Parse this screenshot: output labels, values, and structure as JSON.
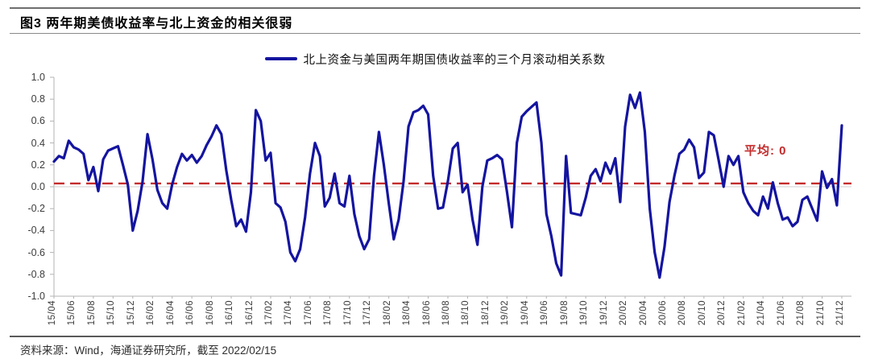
{
  "header": {
    "title": "图3  两年期美债收益率与北上资金的相关很弱"
  },
  "legend": {
    "label": "北上资金与美国两年期国债收益率的三个月滚动相关系数"
  },
  "annotation": {
    "label": "平均: 0"
  },
  "footer": {
    "source": "资料来源：Wind，海通证券研究所，截至 2022/02/15"
  },
  "chart_data": {
    "type": "line",
    "title": "北上资金与美国两年期国债收益率的三个月滚动相关系数",
    "xlabel": "",
    "ylabel": "",
    "ylim": [
      -1.0,
      1.0
    ],
    "yticks": [
      1.0,
      0.8,
      0.6,
      0.4,
      0.2,
      0.0,
      -0.2,
      -0.4,
      -0.6,
      -0.8,
      -1.0
    ],
    "grid": "zero-line-only",
    "legend_position": "top-center",
    "x_tick_labels": [
      "15/04",
      "15/06",
      "15/08",
      "15/10",
      "15/12",
      "16/02",
      "16/04",
      "16/06",
      "16/08",
      "16/10",
      "16/12",
      "17/02",
      "17/04",
      "17/06",
      "17/08",
      "17/10",
      "17/12",
      "18/02",
      "18/04",
      "18/06",
      "18/08",
      "18/10",
      "18/12",
      "19/02",
      "19/04",
      "19/06",
      "19/08",
      "19/10",
      "19/12",
      "20/02",
      "20/04",
      "20/06",
      "20/08",
      "20/10",
      "20/12",
      "21/02",
      "21/04",
      "21/06",
      "21/08",
      "21/10",
      "21/12"
    ],
    "x_start_label": "15/04",
    "x_months_per_point": 0.5,
    "mean_line": {
      "value": 0.03,
      "label": "平均: 0"
    },
    "series": [
      {
        "name": "北上资金与美国两年期国债收益率的三个月滚动相关系数",
        "values": [
          0.23,
          0.28,
          0.26,
          0.42,
          0.36,
          0.34,
          0.3,
          0.06,
          0.18,
          -0.04,
          0.25,
          0.33,
          0.35,
          0.37,
          0.2,
          0.02,
          -0.4,
          -0.22,
          0.05,
          0.48,
          0.25,
          -0.03,
          -0.15,
          -0.2,
          0.02,
          0.18,
          0.3,
          0.24,
          0.29,
          0.22,
          0.28,
          0.38,
          0.46,
          0.56,
          0.48,
          0.15,
          -0.12,
          -0.36,
          -0.3,
          -0.41,
          -0.05,
          0.7,
          0.6,
          0.24,
          0.31,
          -0.15,
          -0.19,
          -0.32,
          -0.6,
          -0.68,
          -0.57,
          -0.28,
          0.12,
          0.4,
          0.28,
          -0.18,
          -0.1,
          0.12,
          -0.15,
          -0.18,
          0.1,
          -0.25,
          -0.45,
          -0.57,
          -0.48,
          0.1,
          0.5,
          0.2,
          -0.15,
          -0.48,
          -0.3,
          0.05,
          0.55,
          0.68,
          0.7,
          0.74,
          0.66,
          0.1,
          -0.2,
          -0.19,
          0.05,
          0.35,
          0.4,
          -0.05,
          0.02,
          -0.3,
          -0.53,
          0.0,
          0.24,
          0.26,
          0.29,
          0.25,
          -0.05,
          -0.37,
          0.4,
          0.64,
          0.69,
          0.73,
          0.77,
          0.4,
          -0.25,
          -0.45,
          -0.7,
          -0.81,
          0.28,
          -0.24,
          -0.25,
          -0.26,
          -0.1,
          0.1,
          0.16,
          0.05,
          0.22,
          0.12,
          0.26,
          -0.14,
          0.55,
          0.84,
          0.72,
          0.86,
          0.5,
          -0.2,
          -0.6,
          -0.83,
          -0.55,
          -0.14,
          0.1,
          0.3,
          0.34,
          0.43,
          0.36,
          0.08,
          0.13,
          0.5,
          0.47,
          0.24,
          0.0,
          0.28,
          0.2,
          0.28,
          -0.05,
          -0.15,
          -0.22,
          -0.26,
          -0.09,
          -0.2,
          0.04,
          -0.15,
          -0.3,
          -0.28,
          -0.36,
          -0.32,
          -0.12,
          -0.09,
          -0.2,
          -0.31,
          0.14,
          -0.01,
          0.07,
          -0.17,
          0.56
        ]
      }
    ],
    "colors": {
      "line": "#1414A0",
      "mean_line": "#C42B2B",
      "axis": "#B3B3B3",
      "zero_line": "#CFCFCF",
      "tick_text": "#3D3D3D"
    }
  }
}
